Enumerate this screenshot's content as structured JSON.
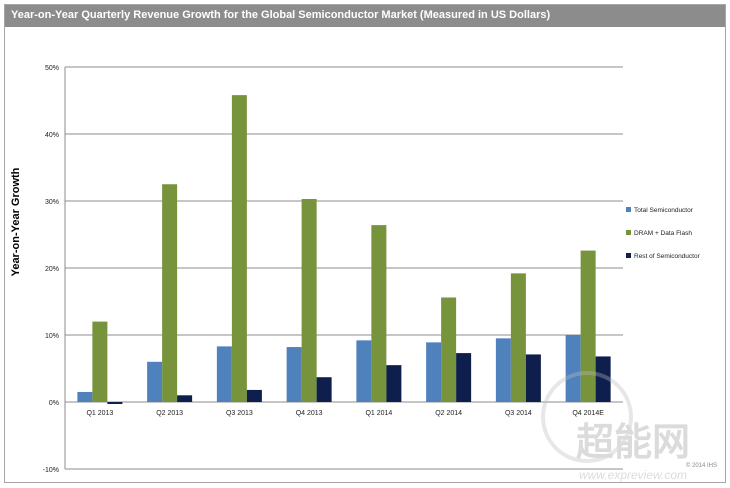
{
  "chart_data": {
    "type": "bar",
    "title": "Year-on-Year Quarterly Revenue Growth for the Global Semiconductor Market (Measured in US Dollars)",
    "ylabel": "Year-on-Year Growth",
    "xlabel": "",
    "categories": [
      "Q1 2013",
      "Q2 2013",
      "Q3 2013",
      "Q4 2013",
      "Q1 2014",
      "Q2 2014",
      "Q3 2014",
      "Q4 2014E"
    ],
    "series": [
      {
        "name": "Total Semiconductor",
        "color": "#4f81bd",
        "values": [
          1.5,
          6.0,
          8.3,
          8.2,
          9.2,
          8.9,
          9.5,
          10.0
        ]
      },
      {
        "name": "DRAM + Data Flash",
        "color": "#77933c",
        "values": [
          12.0,
          32.5,
          45.8,
          30.3,
          26.4,
          15.6,
          19.2,
          22.6
        ]
      },
      {
        "name": "Rest of Semiconductor",
        "color": "#0f1f4d",
        "values": [
          -0.3,
          1.0,
          1.8,
          3.7,
          5.5,
          7.3,
          7.1,
          6.8
        ]
      }
    ],
    "ylim": [
      -10,
      50
    ],
    "yticks": [
      -10,
      0,
      10,
      20,
      30,
      40,
      50
    ],
    "ytick_labels": [
      "-10%",
      "0%",
      "10%",
      "20%",
      "30%",
      "40%",
      "50%"
    ],
    "grid": true,
    "legend_position": "right"
  },
  "watermark": {
    "logo_text": "超能网",
    "url_text": "www.expreview.com"
  },
  "footnote": "© 2014 IHS"
}
